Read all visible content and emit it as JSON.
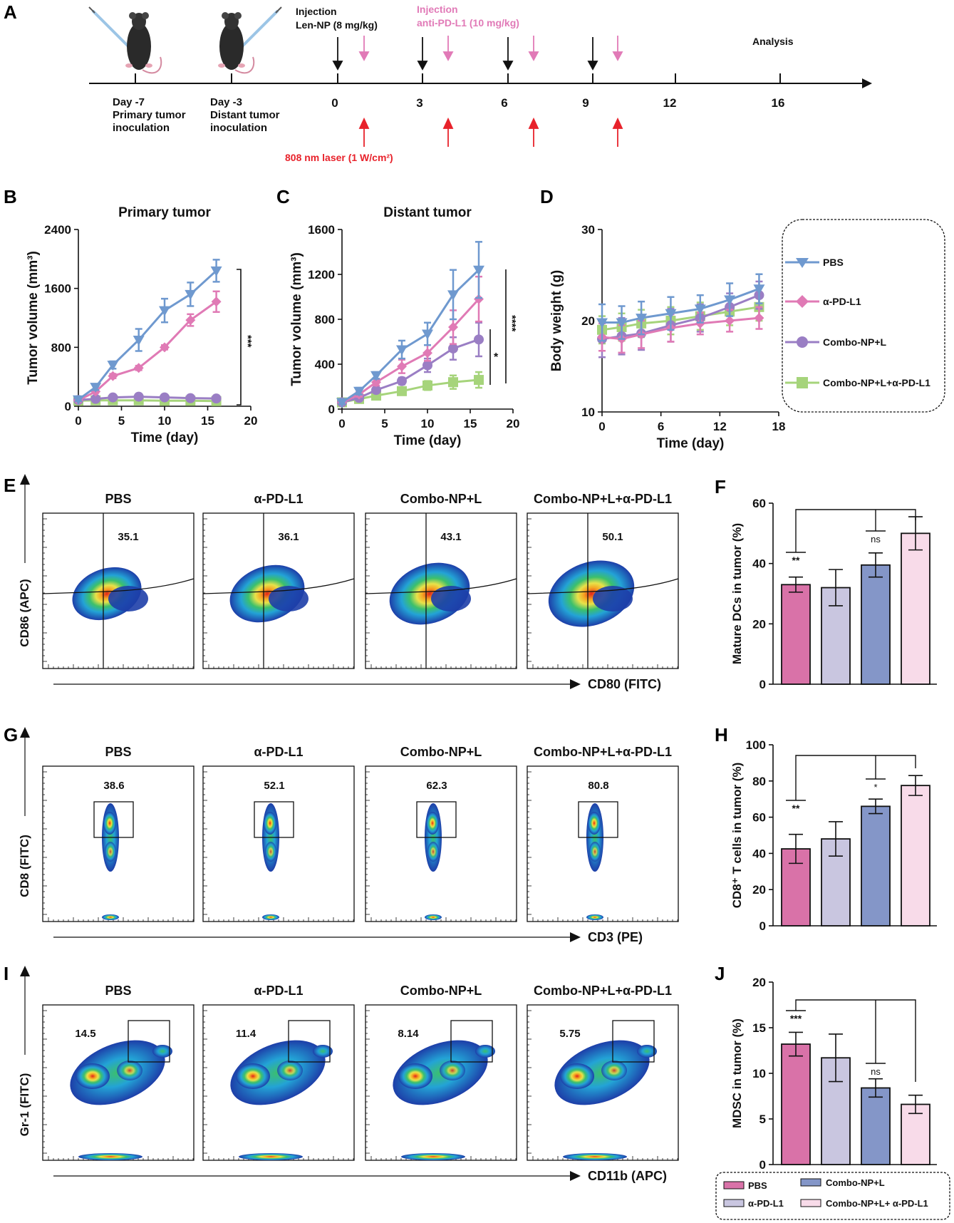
{
  "colors": {
    "pbs": "#6f99cf",
    "apdl1": "#e07ab5",
    "combo": "#9a7ec4",
    "combo_apdl1": "#a6d47b",
    "bar_pbs": "#d972a8",
    "bar_apdl1": "#c9c6e0",
    "bar_combo": "#8496c8",
    "bar_combo_apdl1": "#f8dbe9",
    "injection_black": "#111111",
    "injection_pink": "#e17ab7",
    "laser_red": "#e8222b"
  },
  "panel_labels": [
    "A",
    "B",
    "C",
    "D",
    "E",
    "F",
    "G",
    "H",
    "I",
    "J"
  ],
  "timeline": {
    "inj_len_title": "Injection",
    "inj_len_sub": "Len-NP (8 mg/kg)",
    "inj_pd_title": "Injection",
    "inj_pd_sub": "anti-PD-L1 (10 mg/kg)",
    "analysis": "Analysis",
    "day_m7": [
      "Day -7",
      "Primary tumor",
      "inoculation"
    ],
    "day_m3": [
      "Day -3",
      "Distant tumor",
      "inoculation"
    ],
    "days": [
      "0",
      "3",
      "6",
      "9",
      "12",
      "16"
    ],
    "laser": "808 nm laser (1 W/cm²)"
  },
  "chart_data": [
    {
      "id": "B",
      "type": "line",
      "title": "Primary tumor",
      "xlabel": "Time (day)",
      "ylabel": "Tumor volume (mm³)",
      "xlim": [
        0,
        20
      ],
      "ylim": [
        0,
        2400
      ],
      "xticks": [
        "0",
        "5",
        "10",
        "15",
        "20"
      ],
      "yticks": [
        "0",
        "800",
        "1600",
        "2400"
      ],
      "x": [
        0,
        2,
        4,
        7,
        10,
        13,
        16
      ],
      "series": [
        {
          "name": "PBS",
          "values": [
            90,
            260,
            560,
            900,
            1300,
            1520,
            1840
          ],
          "err": [
            20,
            40,
            50,
            150,
            160,
            160,
            150
          ]
        },
        {
          "name": "α-PD-L1",
          "values": [
            80,
            200,
            410,
            520,
            800,
            1170,
            1420
          ],
          "err": [
            15,
            20,
            30,
            30,
            30,
            80,
            140
          ]
        },
        {
          "name": "Combo-NP+L",
          "values": [
            85,
            100,
            120,
            130,
            120,
            110,
            105
          ],
          "err": [
            10,
            10,
            15,
            15,
            15,
            15,
            10
          ]
        },
        {
          "name": "Combo-NP+L+α-PD-L1",
          "values": [
            75,
            80,
            80,
            80,
            75,
            75,
            70
          ],
          "err": [
            10,
            10,
            10,
            10,
            10,
            10,
            10
          ]
        }
      ],
      "significance": "***"
    },
    {
      "id": "C",
      "type": "line",
      "title": "Distant  tumor",
      "xlabel": "Time (day)",
      "ylabel": "Tumor volume (mm³)",
      "xlim": [
        0,
        20
      ],
      "ylim": [
        0,
        1600
      ],
      "xticks": [
        "0",
        "5",
        "10",
        "15",
        "20"
      ],
      "yticks": [
        "0",
        "400",
        "800",
        "1200",
        "1600"
      ],
      "x": [
        0,
        2,
        4,
        7,
        10,
        13,
        16
      ],
      "series": [
        {
          "name": "PBS",
          "values": [
            60,
            160,
            300,
            530,
            670,
            1020,
            1240
          ],
          "err": [
            15,
            30,
            30,
            80,
            100,
            220,
            250
          ]
        },
        {
          "name": "α-PD-L1",
          "values": [
            60,
            130,
            240,
            380,
            500,
            730,
            980
          ],
          "err": [
            10,
            20,
            30,
            60,
            70,
            150,
            200
          ]
        },
        {
          "name": "Combo-NP+L",
          "values": [
            60,
            100,
            170,
            250,
            390,
            540,
            620
          ],
          "err": [
            10,
            15,
            20,
            30,
            60,
            100,
            150
          ]
        },
        {
          "name": "Combo-NP+L+α-PD-L1",
          "values": [
            60,
            90,
            120,
            160,
            210,
            240,
            260
          ],
          "err": [
            10,
            10,
            15,
            30,
            40,
            60,
            70
          ]
        }
      ],
      "significance": [
        "*",
        "****"
      ]
    },
    {
      "id": "D",
      "type": "line",
      "title": "",
      "xlabel": "Time (day)",
      "ylabel": "Body weight (g)",
      "xlim": [
        0,
        18
      ],
      "ylim": [
        10,
        30
      ],
      "xticks": [
        "0",
        "6",
        "12",
        "18"
      ],
      "yticks": [
        "10",
        "20",
        "30"
      ],
      "x": [
        0,
        2,
        4,
        7,
        10,
        13,
        16
      ],
      "series": [
        {
          "name": "PBS",
          "values": [
            19.8,
            19.8,
            20.3,
            20.8,
            21.3,
            22.3,
            23.5
          ],
          "err": [
            2,
            1.8,
            1.8,
            1.8,
            1.5,
            1.8,
            1.6
          ]
        },
        {
          "name": "α-PD-L1",
          "values": [
            18.2,
            18.0,
            18.5,
            19.2,
            19.7,
            20.0,
            20.3
          ],
          "err": [
            1.5,
            1.5,
            1.5,
            1.5,
            1.2,
            1.2,
            1.2
          ]
        },
        {
          "name": "Combo-NP+L",
          "values": [
            18.0,
            18.3,
            18.6,
            19.5,
            20.3,
            21.5,
            22.8
          ],
          "err": [
            2,
            2,
            1.8,
            1.8,
            1.5,
            1.5,
            1.5
          ]
        },
        {
          "name": "Combo-NP+L+α-PD-L1",
          "values": [
            19.0,
            19.3,
            19.7,
            20.0,
            20.5,
            21.0,
            21.5
          ],
          "err": [
            1.5,
            1.5,
            1.5,
            1.5,
            1.5,
            1.5,
            1.5
          ]
        }
      ]
    },
    {
      "id": "F",
      "type": "bar",
      "ylabel": "Mature DCs in tumor (%)",
      "ylim": [
        0,
        60
      ],
      "yticks": [
        "0",
        "20",
        "40",
        "60"
      ],
      "categories": [
        "PBS",
        "α-PD-L1",
        "Combo-NP+L",
        "Combo-NP+L+α-PD-L1"
      ],
      "values": [
        33,
        32,
        39.5,
        50
      ],
      "err": [
        2.5,
        6,
        4,
        5.5
      ],
      "significance": [
        "**",
        "ns"
      ]
    },
    {
      "id": "H",
      "type": "bar",
      "ylabel": "CD8⁺ T cells in tumor (%)",
      "ylim": [
        0,
        100
      ],
      "yticks": [
        "0",
        "20",
        "40",
        "60",
        "80",
        "100"
      ],
      "categories": [
        "PBS",
        "α-PD-L1",
        "Combo-NP+L",
        "Combo-NP+L+α-PD-L1"
      ],
      "values": [
        42.5,
        48,
        66,
        77.5
      ],
      "err": [
        8,
        9.5,
        4,
        5.5
      ],
      "significance": [
        "**",
        "*"
      ]
    },
    {
      "id": "J",
      "type": "bar",
      "ylabel": "MDSC in tumor (%)",
      "ylim": [
        0,
        20
      ],
      "yticks": [
        "0",
        "5",
        "10",
        "15",
        "20"
      ],
      "categories": [
        "PBS",
        "α-PD-L1",
        "Combo-NP+L",
        "Combo-NP+L+α-PD-L1"
      ],
      "values": [
        13.2,
        11.7,
        8.4,
        6.6
      ],
      "err": [
        1.3,
        2.6,
        1.0,
        1.0
      ],
      "significance": [
        "***",
        "ns"
      ]
    }
  ],
  "legend_d": [
    "PBS",
    "α-PD-L1",
    "Combo-NP+L",
    "Combo-NP+L+α-PD-L1"
  ],
  "legend_j": [
    "PBS",
    "α-PD-L1",
    "Combo-NP+L",
    "Combo-NP+L+ α-PD-L1"
  ],
  "flow": {
    "groups": [
      "PBS",
      "α-PD-L1",
      "Combo-NP+L",
      "Combo-NP+L+α-PD-L1"
    ],
    "E": {
      "values": [
        "35.1",
        "36.1",
        "43.1",
        "50.1"
      ],
      "xlabel": "CD80 (FITC)",
      "ylabel": "CD86 (APC)"
    },
    "G": {
      "values": [
        "38.6",
        "52.1",
        "62.3",
        "80.8"
      ],
      "xlabel": "CD3 (PE)",
      "ylabel": "CD8 (FITC)"
    },
    "I": {
      "values": [
        "14.5",
        "11.4",
        "8.14",
        "5.75"
      ],
      "xlabel": "CD11b (APC)",
      "ylabel": "Gr-1 (FITC)"
    }
  }
}
